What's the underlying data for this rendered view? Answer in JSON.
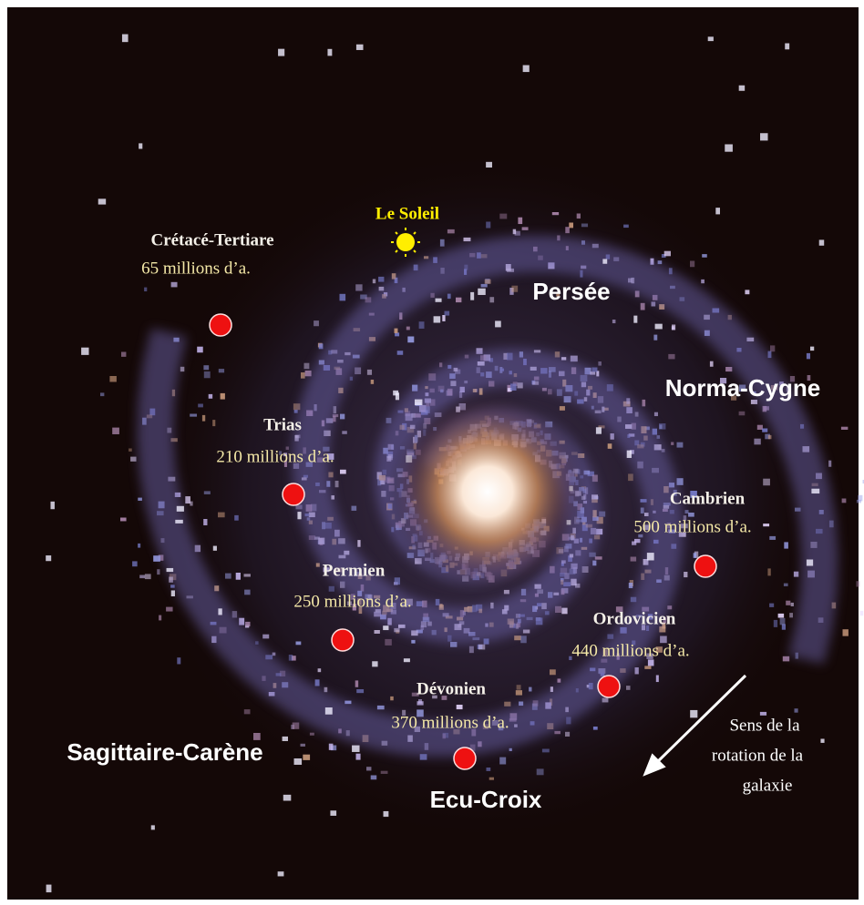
{
  "sun": {
    "label": "Le Soleil"
  },
  "arms": [
    "Persée",
    "Norma-Cygne",
    "Sagittaire-Carène",
    "Ecu-Croix"
  ],
  "events": [
    {
      "name": "Crétacé-Tertiare",
      "age": "65 millions d’a."
    },
    {
      "name": "Trias",
      "age": "210 millions d’a."
    },
    {
      "name": "Permien",
      "age": "250 millions d’a."
    },
    {
      "name": "Dévonien",
      "age": "370 millions d’a."
    },
    {
      "name": "Ordovicien",
      "age": "440 millions d’a."
    },
    {
      "name": "Cambrien",
      "age": "500 millions d’a."
    }
  ],
  "rotation_note": [
    "Sens de la",
    "rotation de la",
    "galaxie"
  ]
}
